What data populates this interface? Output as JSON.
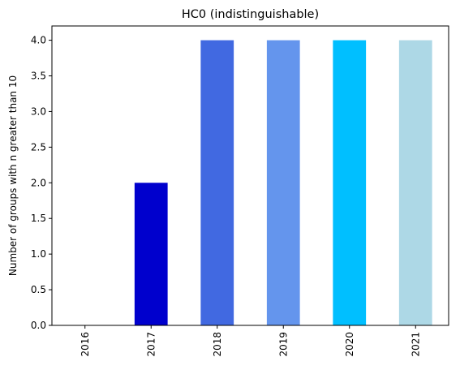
{
  "chart_data": {
    "type": "bar",
    "title": "HC0 (indistinguishable)",
    "xlabel": "",
    "ylabel": "Number of groups with n greater than 10",
    "categories": [
      "2016",
      "2017",
      "2018",
      "2019",
      "2020",
      "2021"
    ],
    "values": [
      0,
      2,
      4,
      4,
      4,
      4
    ],
    "colors": [
      "#0000cd",
      "#0000cd",
      "#4169e1",
      "#6495ed",
      "#00bfff",
      "#add8e6"
    ],
    "ylim": [
      0,
      4.2
    ],
    "yticks": [
      "0.0",
      "0.5",
      "1.0",
      "1.5",
      "2.0",
      "2.5",
      "3.0",
      "3.5",
      "4.0"
    ],
    "grid": false,
    "legend": "none"
  }
}
